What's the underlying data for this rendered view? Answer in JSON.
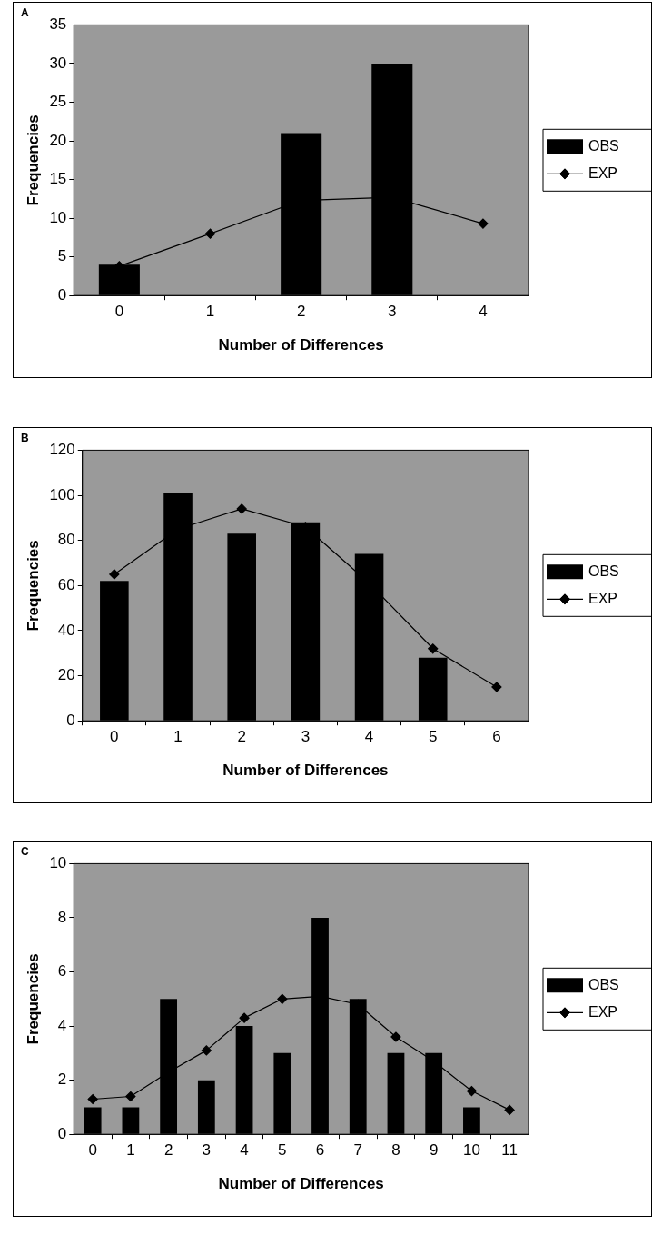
{
  "chart_data": [
    {
      "type": "bar",
      "title": "A",
      "xlabel": "Number of Differences",
      "ylabel": "Frequencies",
      "categories": [
        "0",
        "1",
        "2",
        "3",
        "4"
      ],
      "ylim": [
        0,
        35
      ],
      "yticks": [
        0,
        5,
        10,
        15,
        20,
        25,
        30,
        35
      ],
      "legend": "right",
      "marker": "diamond",
      "series": [
        {
          "name": "OBS",
          "color": "#000000",
          "values": [
            4,
            0,
            21,
            30,
            0
          ]
        },
        {
          "name": "EXP",
          "type": "line",
          "color": "#000000",
          "values": [
            3.8,
            8,
            12.3,
            12.7,
            9.3
          ]
        }
      ]
    },
    {
      "type": "bar",
      "title": "B",
      "xlabel": "Number of Differences",
      "ylabel": "Frequencies",
      "categories": [
        "0",
        "1",
        "2",
        "3",
        "4",
        "5",
        "6"
      ],
      "ylim": [
        0,
        120
      ],
      "yticks": [
        0,
        20,
        40,
        60,
        80,
        100,
        120
      ],
      "legend": "right",
      "marker": "diamond",
      "series": [
        {
          "name": "OBS",
          "color": "#000000",
          "values": [
            62,
            101,
            83,
            88,
            74,
            28,
            0
          ]
        },
        {
          "name": "EXP",
          "type": "line",
          "color": "#000000",
          "values": [
            65,
            85,
            94,
            86,
            61,
            32,
            15
          ]
        }
      ]
    },
    {
      "type": "bar",
      "title": "C",
      "xlabel": "Number of Differences",
      "ylabel": "Frequencies",
      "categories": [
        "0",
        "1",
        "2",
        "3",
        "4",
        "5",
        "6",
        "7",
        "8",
        "9",
        "10",
        "11"
      ],
      "ylim": [
        0,
        10
      ],
      "yticks": [
        0,
        2,
        4,
        6,
        8,
        10
      ],
      "legend": "right",
      "marker": "diamond",
      "series": [
        {
          "name": "OBS",
          "color": "#000000",
          "values": [
            1,
            1,
            5,
            2,
            4,
            3,
            8,
            5,
            3,
            3,
            1,
            0
          ]
        },
        {
          "name": "EXP",
          "type": "line",
          "color": "#000000",
          "values": [
            1.3,
            1.4,
            2.3,
            3.1,
            4.3,
            5.0,
            5.1,
            4.8,
            3.6,
            2.7,
            1.6,
            0.9
          ]
        }
      ]
    }
  ]
}
